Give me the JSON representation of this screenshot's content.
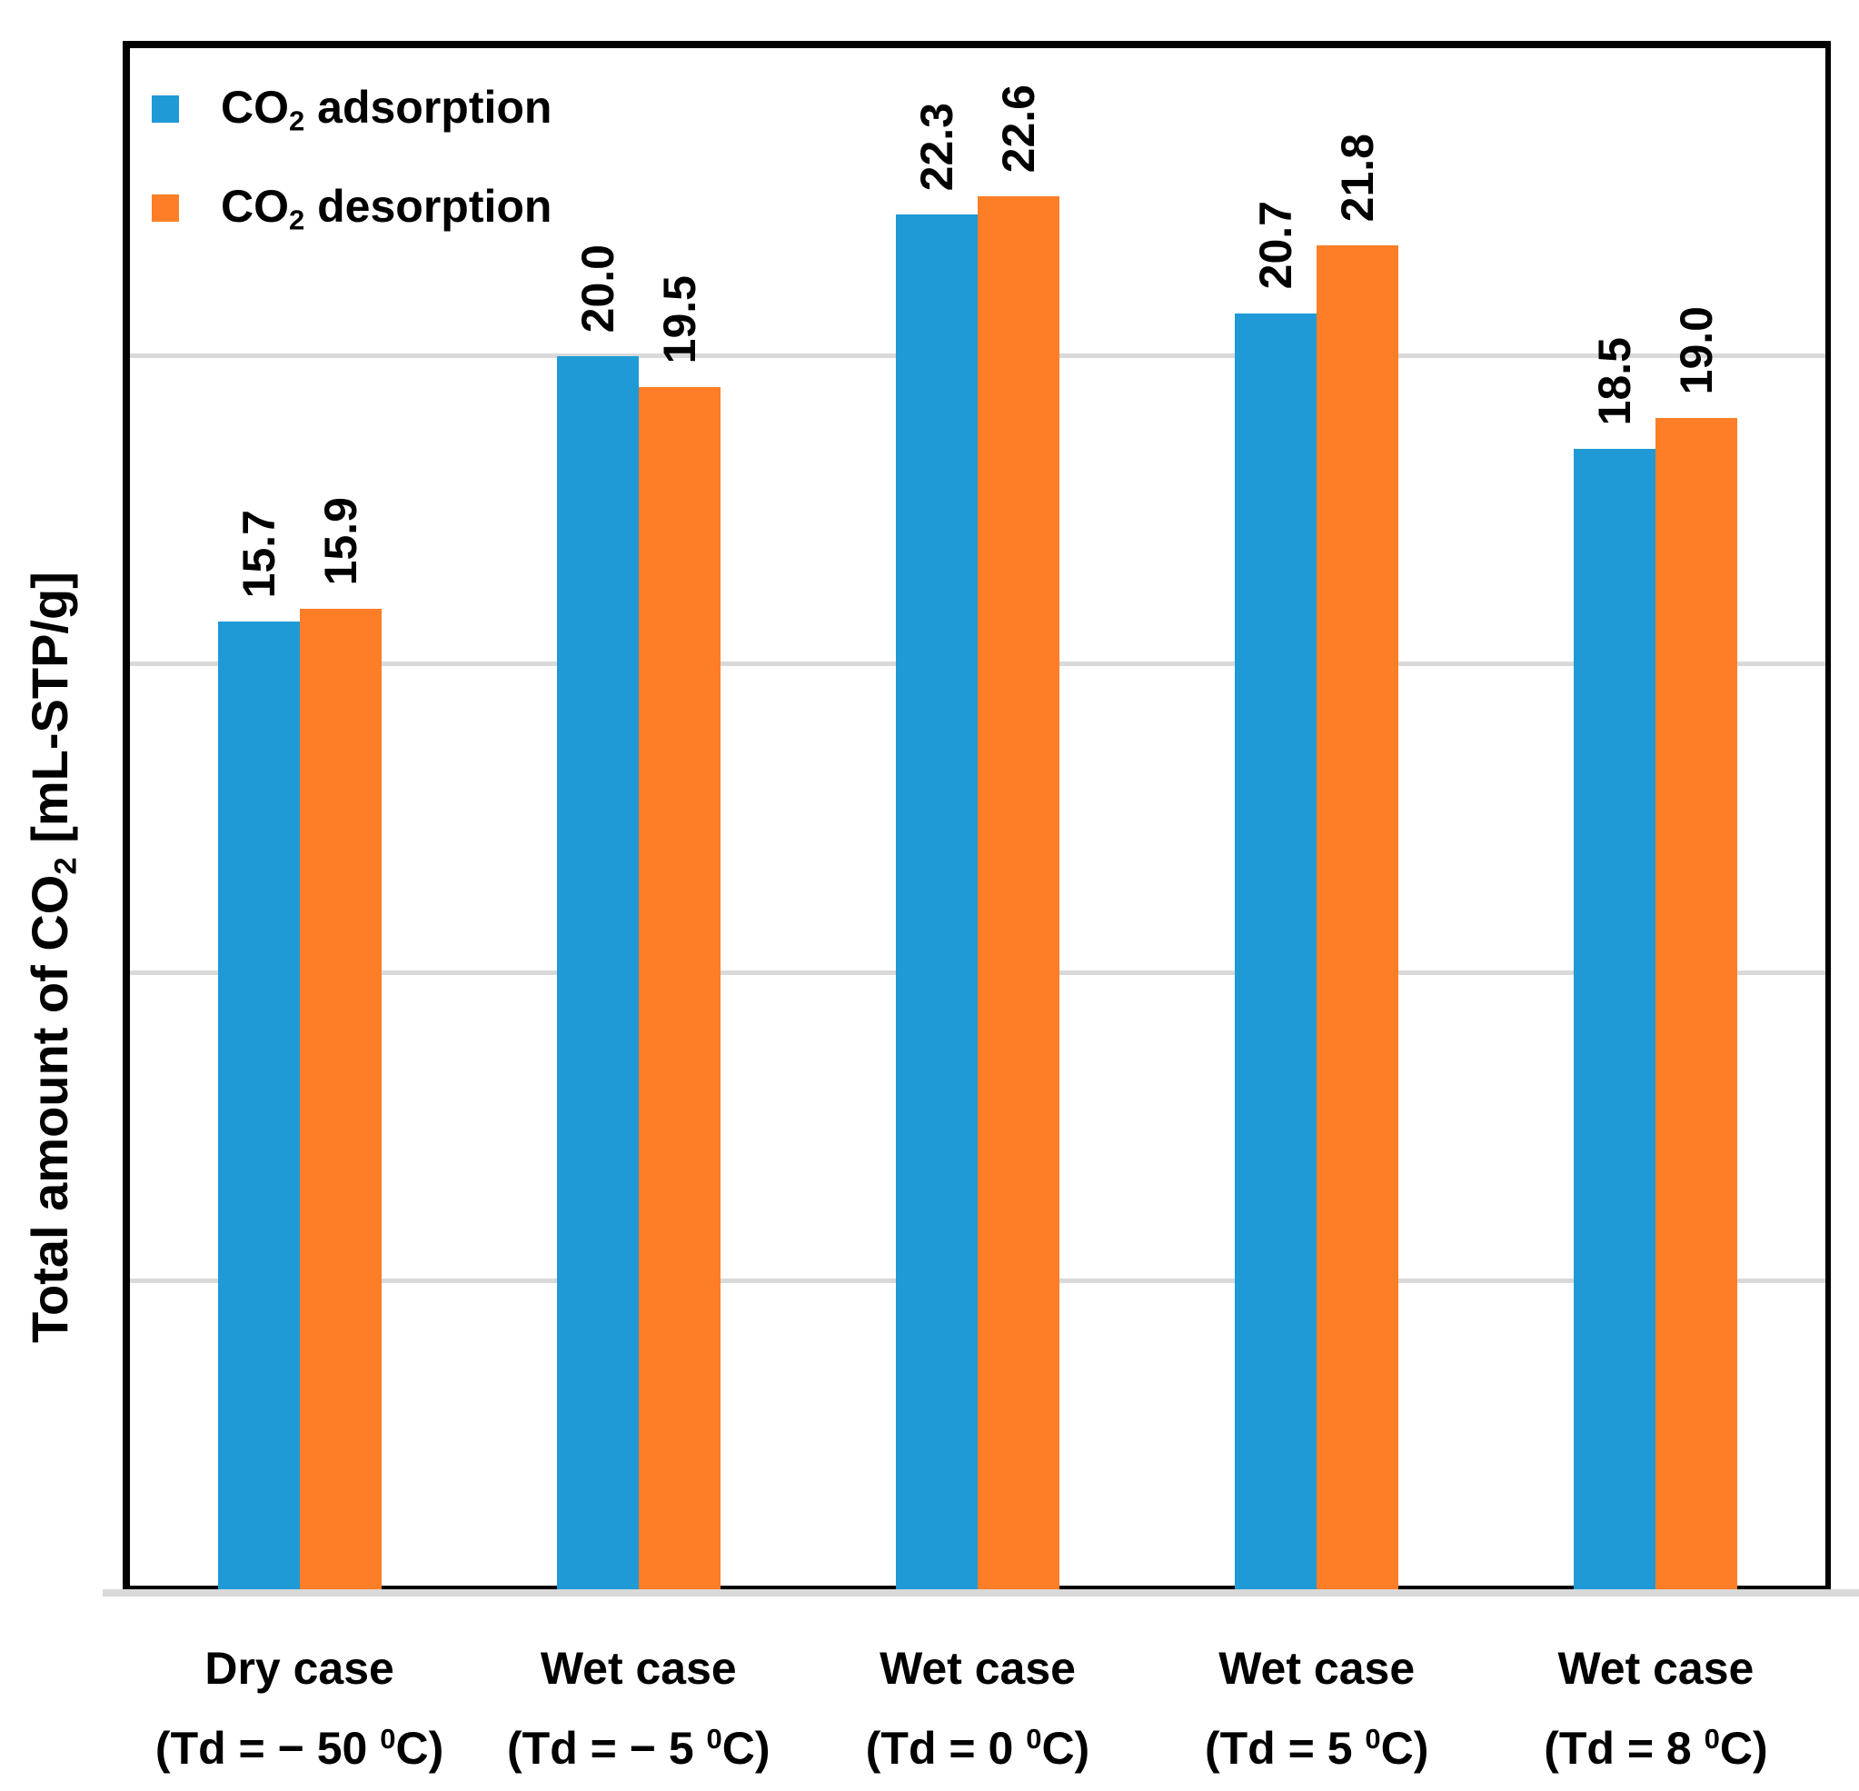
{
  "chart_data": {
    "type": "bar",
    "title": "",
    "xlabel": "",
    "ylabel": "Total amount of CO2 [mL-STP/g]",
    "ylim": [
      0,
      25
    ],
    "gridlines": [
      5,
      10,
      15,
      20
    ],
    "grid": true,
    "legend_position": "top-left",
    "value_labels_rotated_degrees": 90,
    "categories": [
      "Dry case (Td = − 50 ⁰C)",
      "Wet case (Td = − 5 ⁰C)",
      "Wet case (Td = 0 ⁰C)",
      "Wet case (Td = 5 ⁰C)",
      "Wet case (Td = 8 ⁰C)"
    ],
    "series": [
      {
        "name": "CO2 adsorption",
        "color": "#1f9ad6",
        "values": [
          15.7,
          20.0,
          22.3,
          20.7,
          18.5
        ],
        "labels": [
          "15.7",
          "20.0",
          "22.3",
          "20.7",
          "18.5"
        ]
      },
      {
        "name": "CO2 desorption",
        "color": "#fd7e27",
        "values": [
          15.9,
          19.5,
          22.6,
          21.8,
          19.0
        ],
        "labels": [
          "15.9",
          "19.5",
          "22.6",
          "21.8",
          "19.0"
        ]
      }
    ]
  },
  "y_axis": {
    "title_pre": "Total amount of CO",
    "title_sub": "2",
    "title_post": " [mL-STP/g]"
  },
  "legend": {
    "items": [
      {
        "pre": "CO",
        "sub": "2",
        "post": " adsorption",
        "color": "#1f9ad6"
      },
      {
        "pre": "CO",
        "sub": "2",
        "post": " desorption",
        "color": "#fd7e27"
      }
    ]
  },
  "categories": [
    {
      "line1": "Dry case",
      "line2_pre": "(Td = − 50 ",
      "line2_sup": "0",
      "line2_post": "C)"
    },
    {
      "line1": "Wet case",
      "line2_pre": "(Td = − 5 ",
      "line2_sup": "0",
      "line2_post": "C)"
    },
    {
      "line1": "Wet case",
      "line2_pre": "(Td = 0 ",
      "line2_sup": "0",
      "line2_post": "C)"
    },
    {
      "line1": "Wet case",
      "line2_pre": "(Td = 5 ",
      "line2_sup": "0",
      "line2_post": "C)"
    },
    {
      "line1": "Wet case",
      "line2_pre": "(Td = 8 ",
      "line2_sup": "0",
      "line2_post": "C)"
    }
  ],
  "colors": {
    "adsorption": "#1f9ad6",
    "desorption": "#fd7e27",
    "gridline": "#d9d9d9",
    "axis": "#000000",
    "baseline_band": "#d9d9d9"
  }
}
